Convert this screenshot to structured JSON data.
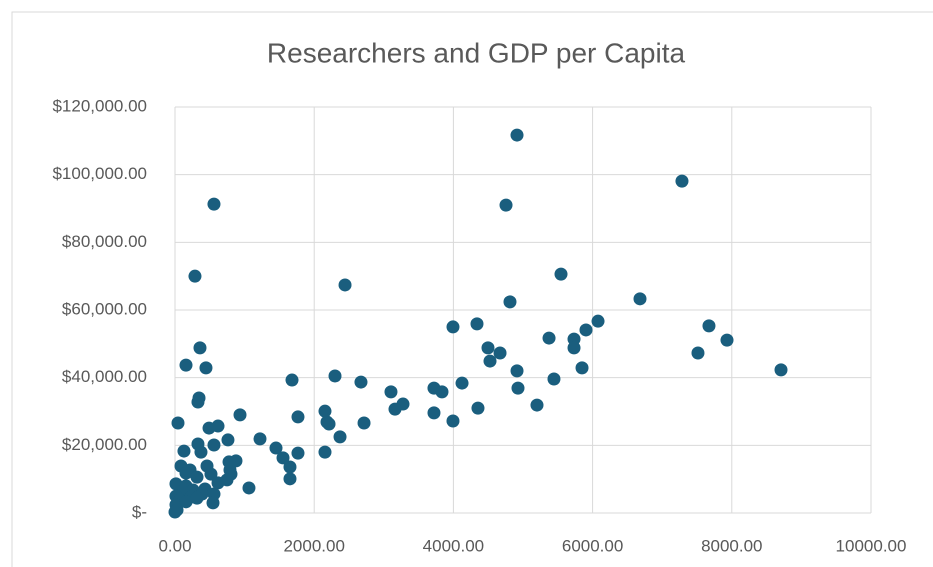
{
  "chart_data": {
    "type": "scatter",
    "title": "Researchers and GDP per Capita",
    "color": "#1a5e7e",
    "grid": true,
    "xlim": [
      0,
      10000
    ],
    "xticks": [
      {
        "value": 0,
        "label": "0.00"
      },
      {
        "value": 2000,
        "label": "2000.00"
      },
      {
        "value": 4000,
        "label": "4000.00"
      },
      {
        "value": 6000,
        "label": "6000.00"
      },
      {
        "value": 8000,
        "label": "8000.00"
      },
      {
        "value": 10000,
        "label": "10000.00"
      }
    ],
    "ylim": [
      0,
      120000
    ],
    "yticks": [
      {
        "value": 0,
        "label": "$-"
      },
      {
        "value": 20000,
        "label": "$20,000.00"
      },
      {
        "value": 40000,
        "label": "$40,000.00"
      },
      {
        "value": 60000,
        "label": "$60,000.00"
      },
      {
        "value": 80000,
        "label": "$80,000.00"
      },
      {
        "value": 100000,
        "label": "$100,000.00"
      },
      {
        "value": 120000,
        "label": "$120,000.00"
      }
    ],
    "x": [
      4914,
      7284,
      560,
      4756,
      287,
      5546,
      2443,
      6681,
      4813,
      6078,
      7672,
      3994,
      4339,
      5905,
      5733,
      5374,
      7931,
      5733,
      4497,
      4670,
      7514,
      359,
      158,
      445,
      4526,
      4914,
      5848,
      8707,
      1681,
      2299,
      2672,
      4124,
      5445,
      3721,
      3836,
      3103,
      4928,
      345,
      330,
      3276,
      3161,
      4353,
      5201,
      3721,
      2155,
      1767,
      934,
      43,
      2184,
      2213,
      2716,
      3994,
      618,
      489,
      2371,
      1221,
      761,
      330,
      560,
      1451,
      129,
      373,
      1767,
      2155,
      1552,
      876,
      776,
      1652,
      86,
      460,
      216,
      790,
      517,
      804,
      158,
      1652,
      316,
      747,
      618,
      14,
      158,
      1063,
      259,
      431,
      115,
      388,
      560,
      14,
      230,
      72,
      546,
      14,
      158,
      29,
      0,
      316
    ],
    "values": [
      111700,
      98100,
      91300,
      91000,
      70000,
      70600,
      67400,
      63300,
      62400,
      56700,
      55300,
      55000,
      55900,
      54100,
      51400,
      51700,
      51100,
      48800,
      48800,
      47300,
      47300,
      48800,
      43700,
      42900,
      44900,
      42000,
      42900,
      42300,
      39300,
      40500,
      38700,
      38400,
      39600,
      36900,
      35800,
      35800,
      36900,
      34000,
      32800,
      32200,
      30700,
      31000,
      31900,
      29600,
      30100,
      28400,
      29000,
      26600,
      26900,
      26300,
      26600,
      27200,
      25700,
      25100,
      22500,
      21900,
      21600,
      20400,
      20100,
      19200,
      18300,
      18000,
      17700,
      18000,
      16300,
      15400,
      15100,
      13600,
      13900,
      13900,
      12700,
      12700,
      11500,
      11500,
      11800,
      10100,
      10600,
      9800,
      8900,
      8600,
      8000,
      7400,
      6800,
      7100,
      6200,
      5600,
      5600,
      5000,
      4700,
      3800,
      3000,
      2400,
      3300,
      900,
      300,
      4400
    ]
  }
}
